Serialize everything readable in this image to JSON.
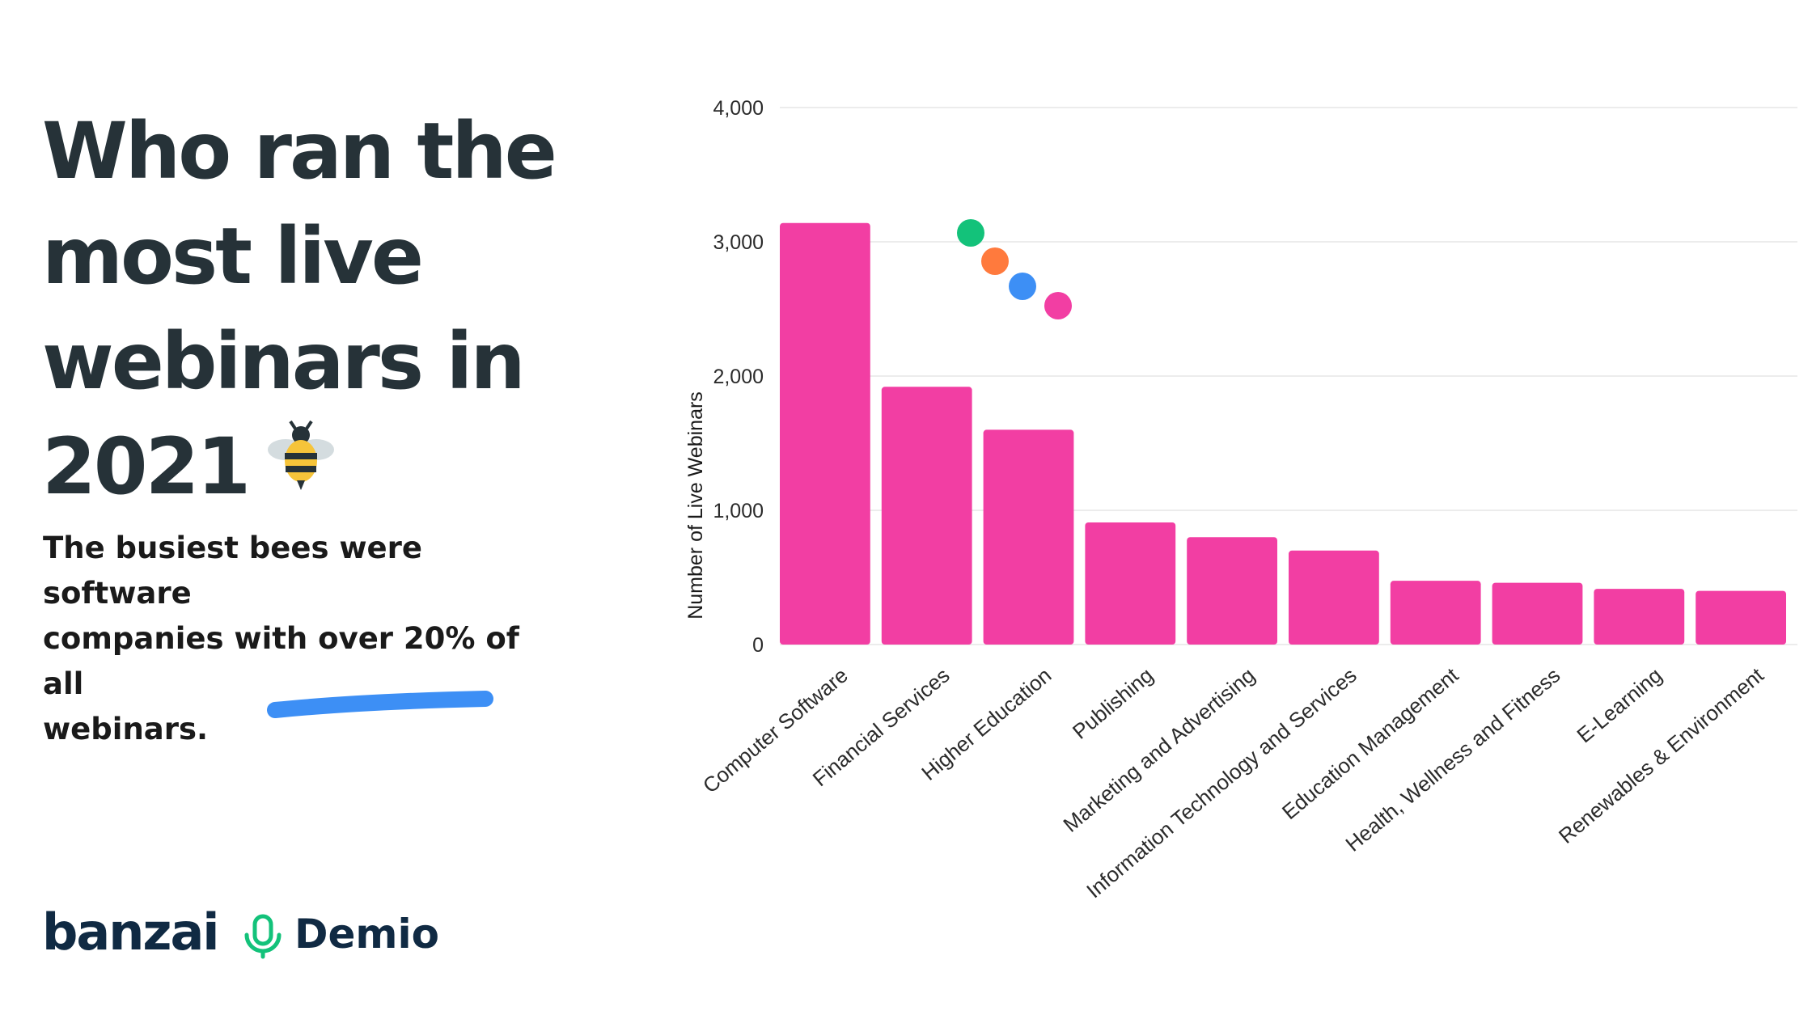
{
  "headline": {
    "lines": [
      "Who ran the",
      "most live",
      "webinars in",
      "2021"
    ],
    "emoji_icon": "bee-icon"
  },
  "subtitle": {
    "lines": [
      "The busiest bees were software",
      "companies with over 20% of all",
      "webinars."
    ]
  },
  "logos": {
    "banzai": "banzai",
    "demio": "Demio",
    "demio_icon": "microphone-icon"
  },
  "decor": {
    "dot_colors": [
      "#13c27a",
      "#ff7a3d",
      "#3d8ff5",
      "#f23ea3"
    ],
    "stroke_color": "#3d8ff5"
  },
  "chart_data": {
    "type": "bar",
    "title": "",
    "xlabel": "",
    "ylabel": "Number of Live Webinars",
    "ylim": [
      0,
      4000
    ],
    "yticks": [
      0,
      1000,
      2000,
      3000,
      4000
    ],
    "ytick_labels": [
      "0",
      "1,000",
      "2,000",
      "3,000",
      "4,000"
    ],
    "grid": true,
    "bar_color": "#f23ea3",
    "categories": [
      "Computer Software",
      "Financial Services",
      "Higher Education",
      "Publishing",
      "Marketing and Advertising",
      "Information Technology and Services",
      "Education Management",
      "Health, Wellness and Fitness",
      "E-Learning",
      "Renewables & Environment"
    ],
    "values": [
      3140,
      1920,
      1600,
      910,
      800,
      700,
      475,
      460,
      415,
      400
    ]
  }
}
